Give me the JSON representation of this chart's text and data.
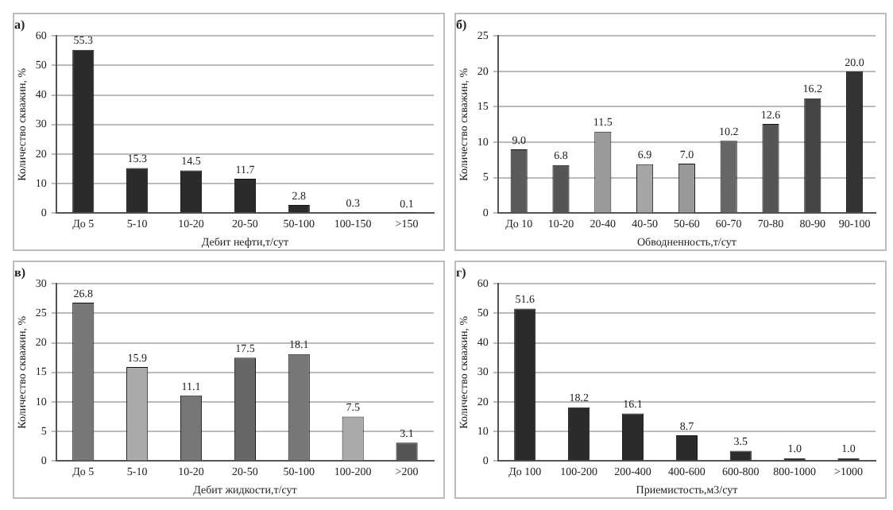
{
  "chart_data": [
    {
      "type": "bar",
      "title": "а)",
      "xlabel": "Дебит нефти,т/сут",
      "ylabel": "Количество скважин, %",
      "categories": [
        "До 5",
        "5-10",
        "10-20",
        "20-50",
        "50-100",
        "100-150",
        ">150"
      ],
      "values": [
        55.3,
        15.3,
        14.5,
        11.7,
        2.8,
        0.3,
        0.1
      ],
      "color": "#2b2b2b",
      "ylim": [
        0,
        60
      ],
      "yticks": [
        0,
        10,
        20,
        30,
        40,
        50,
        60
      ],
      "grid": "y",
      "data_labels": true
    },
    {
      "type": "bar",
      "title": "б)",
      "xlabel": "Обводненность,т/сут",
      "ylabel": "Количество скважин, %",
      "categories": [
        "До 10",
        "10-20",
        "20-40",
        "40-50",
        "50-60",
        "60-70",
        "70-80",
        "80-90",
        "90-100"
      ],
      "values": [
        9.0,
        6.8,
        11.5,
        6.9,
        7.0,
        10.2,
        12.6,
        16.2,
        20.0
      ],
      "colors": [
        "#5a5a5a",
        "#555555",
        "#9a9a9a",
        "#a5a5a5",
        "#999999",
        "#666666",
        "#555555",
        "#444444",
        "#333333"
      ],
      "ylim": [
        0,
        25
      ],
      "yticks": [
        0,
        5,
        10,
        15,
        20,
        25
      ],
      "grid": "y",
      "value_labels": [
        "9.0",
        "6.8",
        "11.5",
        "6.9",
        "7.0",
        "10.2",
        "12.6",
        "16.2",
        "20.0"
      ]
    },
    {
      "type": "bar",
      "title": "в)",
      "xlabel": "Дебит жидкости,т/сут",
      "ylabel": "Количество скважин, %",
      "categories": [
        "До 5",
        "5-10",
        "10-20",
        "20-50",
        "50-100",
        "100-200",
        ">200"
      ],
      "values": [
        26.8,
        15.9,
        11.1,
        17.5,
        18.1,
        7.5,
        3.1
      ],
      "colors": [
        "#777777",
        "#aaaaaa",
        "#777777",
        "#666666",
        "#777777",
        "#aaaaaa",
        "#555555"
      ],
      "ylim": [
        0,
        30
      ],
      "yticks": [
        0,
        5,
        10,
        15,
        20,
        25,
        30
      ],
      "grid": "y",
      "data_labels": true
    },
    {
      "type": "bar",
      "title": "г)",
      "xlabel": "Приемистость,м3/сут",
      "ylabel": "Количество скважин, %",
      "categories": [
        "До 100",
        "100-200",
        "200-400",
        "400-600",
        "600-800",
        "800-1000",
        ">1000"
      ],
      "values": [
        51.6,
        18.2,
        16.1,
        8.7,
        3.5,
        1.0,
        1.0
      ],
      "color": "#2b2b2b",
      "ylim": [
        0,
        60
      ],
      "yticks": [
        0,
        10,
        20,
        30,
        40,
        50,
        60
      ],
      "grid": "y",
      "value_labels": [
        "51.6",
        "18.2",
        "16.1",
        "8.7",
        "3.5",
        "1.0",
        "1.0"
      ]
    }
  ]
}
